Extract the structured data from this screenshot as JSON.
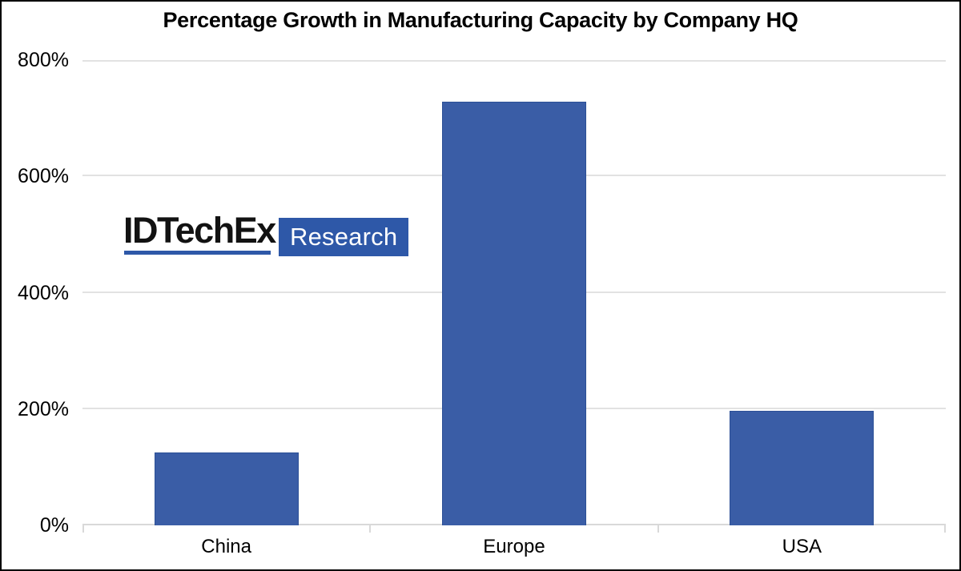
{
  "frame": {
    "background": "#ffffff",
    "border_color": "#000000"
  },
  "chart_data": {
    "type": "bar",
    "title": "Percentage Growth in Manufacturing Capacity by Company HQ",
    "categories": [
      "China",
      "Europe",
      "USA"
    ],
    "values": [
      125,
      728,
      197
    ],
    "unit": "%",
    "xlabel": "",
    "ylabel": "",
    "ylim": [
      0,
      800
    ],
    "yticks": [
      0,
      200,
      400,
      600,
      800
    ],
    "ytick_labels": [
      "0%",
      "200%",
      "400%",
      "600%",
      "800%"
    ],
    "grid": "horizontal",
    "legend_position": "none",
    "bar_color": "#3a5da6",
    "bar_border_color": "#2c5096",
    "gridline_color": "#e2e2e2",
    "axis_color": "#d9d9d9"
  },
  "watermark": {
    "brand": "IDTechEx",
    "suffix": "Research",
    "underline_color": "#2e58a8",
    "box_color": "#2e58a8",
    "brand_text_color": "#121212",
    "suffix_text_color": "#ffffff"
  }
}
